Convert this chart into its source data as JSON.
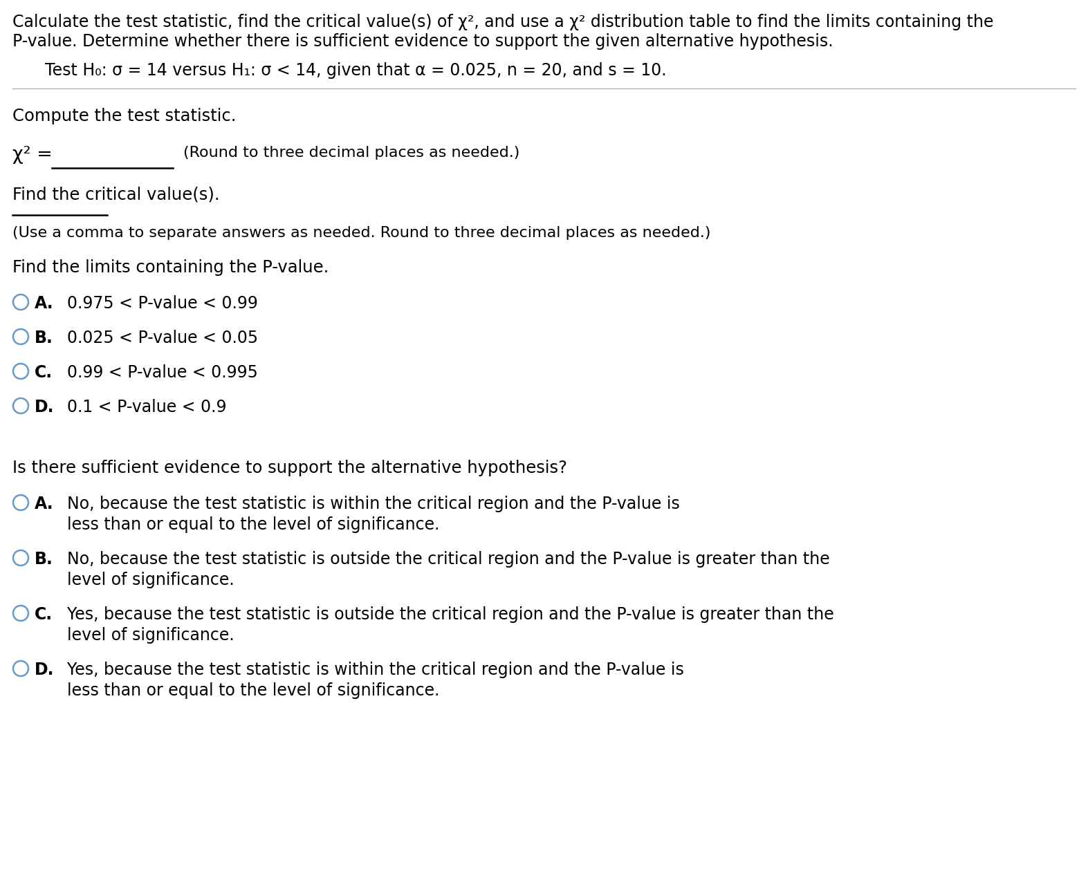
{
  "bg_color": "#ffffff",
  "header_line1": "Calculate the test statistic, find the critical value(s) of χ², and use a χ² distribution table to find the limits containing the",
  "header_line2": "P-value. Determine whether there is sufficient evidence to support the given alternative hypothesis.",
  "hypothesis_line": "Test H₀: σ = 14 versus H₁: σ < 14, given that α = 0.025, n = 20, and s = 10.",
  "section1_title": "Compute the test statistic.",
  "chi_sq_label": "χ² =",
  "chi_sq_note": "(Round to three decimal places as needed.)",
  "section2_title": "Find the critical value(s).",
  "critical_note": "(Use a comma to separate answers as needed. Round to three decimal places as needed.)",
  "section3_title": "Find the limits containing the P-value.",
  "pvalue_options": [
    {
      "letter": "A.",
      "text": "  0.975 < P-value < 0.99"
    },
    {
      "letter": "B.",
      "text": "  0.025 < P-value < 0.05"
    },
    {
      "letter": "C.",
      "text": "  0.99 < P-value < 0.995"
    },
    {
      "letter": "D.",
      "text": "  0.1 < P-value < 0.9"
    }
  ],
  "section4_title": "Is there sufficient evidence to support the alternative hypothesis?",
  "evidence_options": [
    {
      "letter": "A.",
      "text_line1": "  No, because the test statistic is within the critical region and the P-value is",
      "text_line2": "  less than or equal to the level of significance."
    },
    {
      "letter": "B.",
      "text_line1": "  No, because the test statistic is outside the critical region and the P-value is greater than the",
      "text_line2": "  level of significance."
    },
    {
      "letter": "C.",
      "text_line1": "  Yes, because the test statistic is outside the critical region and the P-value is greater than the",
      "text_line2": "  level of significance."
    },
    {
      "letter": "D.",
      "text_line1": "  Yes, because the test statistic is within the critical region and the P-value is",
      "text_line2": "  less than or equal to the level of significance."
    }
  ],
  "circle_color": "#6699cc",
  "font_family": "DejaVu Sans",
  "header_fontsize": 17.0,
  "hypothesis_fontsize": 17.0,
  "section_fontsize": 17.5,
  "option_fontsize": 17.0,
  "note_fontsize": 16.0,
  "text_color": "#000000",
  "line_color": "#000000",
  "divider_color": "#aaaaaa"
}
